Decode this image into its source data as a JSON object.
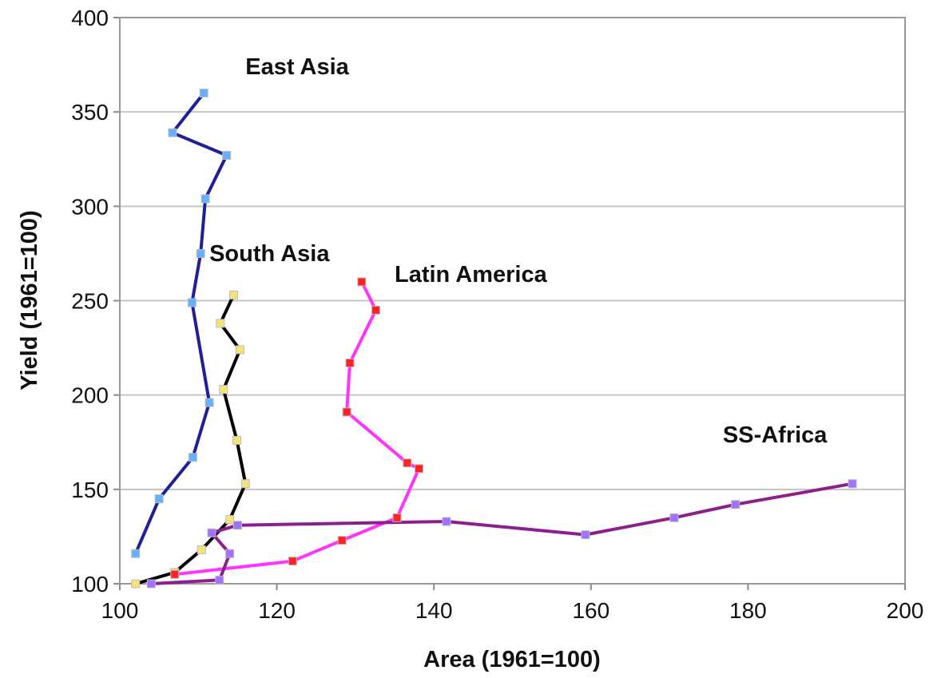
{
  "chart_data": {
    "type": "line",
    "title": "",
    "xlabel": "Area (1961=100)",
    "ylabel": "Yield (1961=100)",
    "xlim": [
      100,
      200
    ],
    "ylim": [
      100,
      400
    ],
    "x_ticks": [
      "100",
      "120",
      "140",
      "160",
      "180",
      "200"
    ],
    "y_ticks": [
      "100",
      "150",
      "200",
      "250",
      "300",
      "350",
      "400"
    ],
    "grid": "horizontal",
    "legend": "inline labels",
    "series": [
      {
        "name": "East Asia",
        "color": "#1f1f9a",
        "marker_color": "#66b0ff",
        "marker": "square",
        "points": [
          {
            "x": 102.0,
            "y": 116
          },
          {
            "x": 105.0,
            "y": 145
          },
          {
            "x": 109.3,
            "y": 167
          },
          {
            "x": 111.4,
            "y": 196
          },
          {
            "x": 109.2,
            "y": 249
          },
          {
            "x": 110.3,
            "y": 275
          },
          {
            "x": 110.9,
            "y": 304
          },
          {
            "x": 113.6,
            "y": 327
          },
          {
            "x": 106.7,
            "y": 339
          },
          {
            "x": 110.7,
            "y": 360
          }
        ]
      },
      {
        "name": "South Asia",
        "color": "#000000",
        "marker_color": "#f3e37a",
        "marker": "square",
        "points": [
          {
            "x": 102.0,
            "y": 100
          },
          {
            "x": 107.0,
            "y": 106
          },
          {
            "x": 110.4,
            "y": 118
          },
          {
            "x": 114.0,
            "y": 134
          },
          {
            "x": 116.0,
            "y": 153
          },
          {
            "x": 114.9,
            "y": 176
          },
          {
            "x": 113.2,
            "y": 203
          },
          {
            "x": 115.3,
            "y": 224
          },
          {
            "x": 112.8,
            "y": 238
          },
          {
            "x": 114.5,
            "y": 253
          }
        ]
      },
      {
        "name": "Latin America",
        "color": "#ff33ff",
        "marker_color": "#ff2222",
        "marker": "square",
        "points": [
          {
            "x": 107.0,
            "y": 105
          },
          {
            "x": 122.0,
            "y": 112
          },
          {
            "x": 128.3,
            "y": 123
          },
          {
            "x": 135.3,
            "y": 135
          },
          {
            "x": 138.1,
            "y": 161
          },
          {
            "x": 136.6,
            "y": 164
          },
          {
            "x": 128.9,
            "y": 191
          },
          {
            "x": 129.3,
            "y": 217
          },
          {
            "x": 132.6,
            "y": 245
          },
          {
            "x": 130.8,
            "y": 260
          }
        ]
      },
      {
        "name": "SS-Africa",
        "color": "#8b1f8b",
        "marker_color": "#a070ff",
        "marker": "square",
        "points": [
          {
            "x": 104.0,
            "y": 100
          },
          {
            "x": 112.7,
            "y": 102
          },
          {
            "x": 114.0,
            "y": 116
          },
          {
            "x": 111.7,
            "y": 127
          },
          {
            "x": 115.0,
            "y": 131
          },
          {
            "x": 141.6,
            "y": 133
          },
          {
            "x": 159.3,
            "y": 126
          },
          {
            "x": 170.6,
            "y": 135
          },
          {
            "x": 178.4,
            "y": 142
          },
          {
            "x": 193.3,
            "y": 153
          }
        ]
      }
    ],
    "annotations": [
      {
        "text": "East Asia",
        "x": 116.0,
        "y": 370
      },
      {
        "text": "South Asia",
        "x": 111.4,
        "y": 271
      },
      {
        "text": "Latin America",
        "x": 135.0,
        "y": 260
      },
      {
        "text": "SS-Africa",
        "x": 176.8,
        "y": 175
      }
    ]
  }
}
